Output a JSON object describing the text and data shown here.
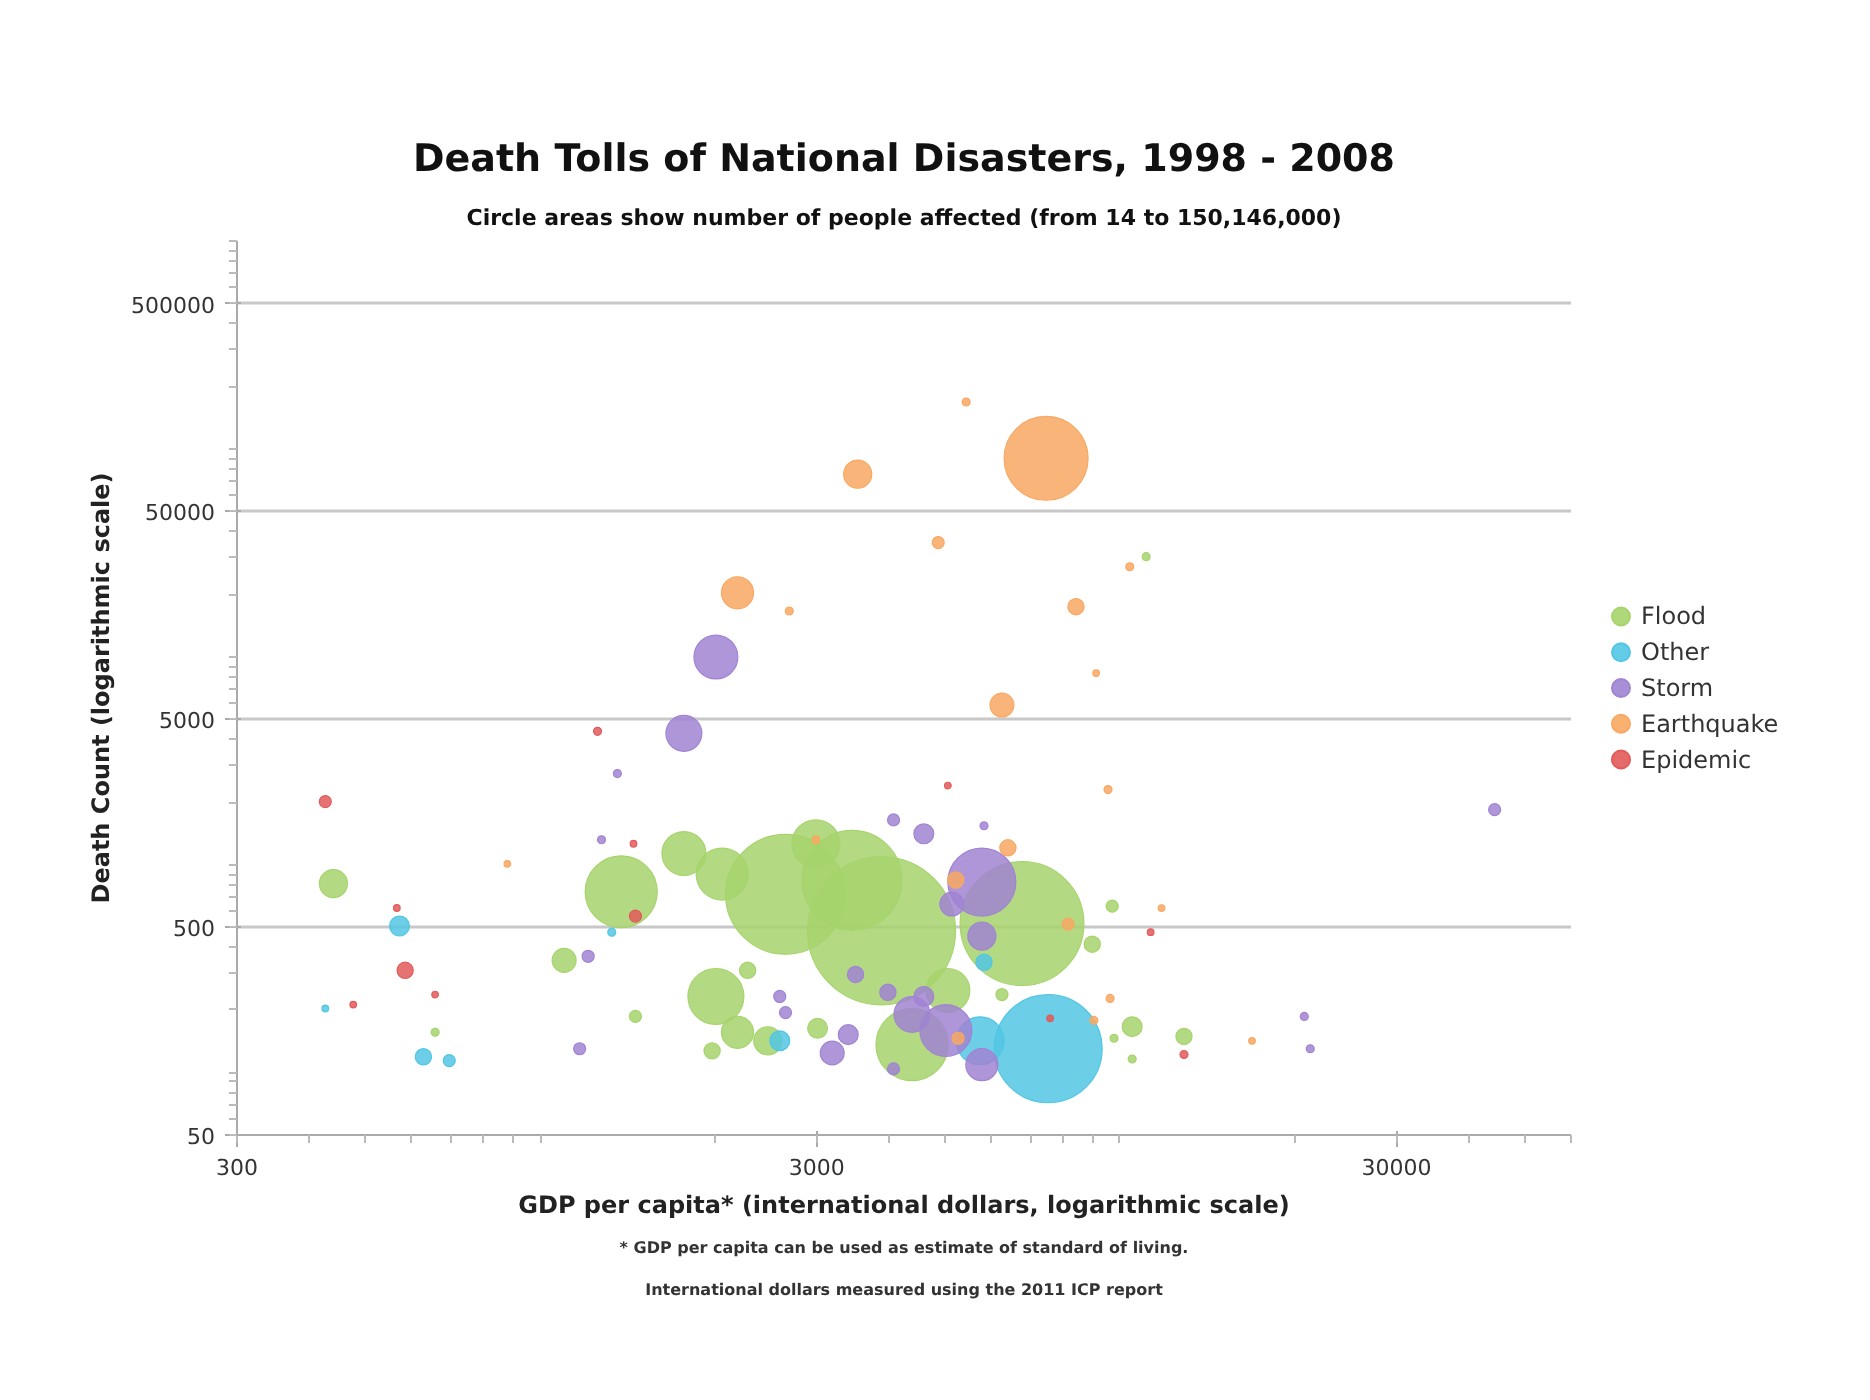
{
  "chart_data": {
    "type": "bubble",
    "title": "Death Tolls of National Disasters, 1998 - 2008",
    "subtitle": "Circle areas show number of people affected (from 14 to 150,146,000)",
    "xlabel": "GDP per capita* (international dollars, logarithmic scale)",
    "ylabel": "Death Count (logarithmic scale)",
    "annotations": [
      "* GDP per capita can be used as estimate of standard of living.",
      "International dollars measured using the 2011 ICP report"
    ],
    "xlim": [
      300,
      60000
    ],
    "ylim": [
      50,
      1000000
    ],
    "xticks": [
      300,
      3000,
      30000
    ],
    "yticks": [
      50,
      500,
      5000,
      50000,
      500000
    ],
    "log": "xy",
    "grid": "y",
    "legend": "right",
    "marker": "circle",
    "series": [
      {
        "name": "Flood",
        "color": "#a6d46c",
        "x": [
          440,
          1380,
          1770,
          2060,
          2650,
          2990,
          3450,
          3880,
          6780,
          2010,
          2190,
          2470,
          4380,
          5050,
          1100,
          1460,
          1980,
          2280,
          10500,
          12900,
          9700,
          8960,
          6260,
          11100,
          10500,
          9770,
          659,
          3010
        ],
        "values": [
          810,
          740,
          1130,
          900,
          720,
          1260,
          840,
          480,
          520,
          232,
          156,
          142,
          136,
          248,
          346,
          186,
          127,
          310,
          166,
          149,
          631,
          414,
          237,
          30300,
          116,
          146,
          156,
          163
        ],
        "sizes": [
          0.036,
          0.237,
          0.088,
          0.123,
          0.657,
          0.105,
          0.457,
          1,
          0.7,
          0.143,
          0.047,
          0.036,
          0.237,
          0.088,
          0.026,
          0.0066,
          0.012,
          0.012,
          0.018,
          0.012,
          0.0066,
          0.012,
          0.0066,
          0.0029,
          0.0029,
          0.0029,
          0.0029,
          0.018
        ]
      },
      {
        "name": "Other",
        "color": "#52c6e3",
        "x": [
          572,
          629,
          697,
          2590,
          7520,
          5830,
          5740,
          426,
          1329
        ],
        "values": [
          506,
          119,
          114,
          142,
          130,
          339,
          142,
          203,
          473
        ],
        "sizes": [
          0.018,
          0.012,
          0.0066,
          0.018,
          0.533,
          0.012,
          0.105,
          0.002,
          0.0029
        ]
      },
      {
        "name": "Storm",
        "color": "#a084d2",
        "x": [
          2010,
          1770,
          1359,
          1210,
          1170,
          4070,
          4590,
          5830,
          5780,
          5130,
          5780,
          4590,
          4380,
          5010,
          5780,
          4070,
          3400,
          3190,
          3500,
          3980,
          2590,
          2650,
          44300,
          20800,
          21300,
          1276
        ],
        "values": [
          9970,
          4280,
          2740,
          362,
          130,
          1640,
          1406,
          1538,
          824,
          646,
          453,
          232,
          190,
          159,
          109,
          104,
          152,
          124,
          296,
          243,
          232,
          194,
          1837,
          186,
          130,
          1316
        ],
        "sizes": [
          0.088,
          0.059,
          0.0029,
          0.0066,
          0.0066,
          0.0066,
          0.018,
          0.0029,
          0.211,
          0.026,
          0.036,
          0.018,
          0.059,
          0.123,
          0.047,
          0.0066,
          0.018,
          0.026,
          0.012,
          0.012,
          0.0066,
          0.0066,
          0.0066,
          0.0029,
          0.0029,
          0.0029
        ]
      },
      {
        "name": "Earthquake",
        "color": "#f8a862",
        "x": [
          3530,
          2190,
          2690,
          5430,
          7460,
          4860,
          10400,
          8400,
          9100,
          6260,
          9540,
          6410,
          5210,
          9620,
          11800,
          16900,
          8140,
          5260,
          878,
          2990,
          9020
        ],
        "values": [
          75500,
          20300,
          16600,
          168000,
          90100,
          35400,
          27100,
          17400,
          8340,
          5850,
          2295,
          1204,
          843,
          227,
          618,
          142,
          517,
          146,
          1008,
          1316,
          178
        ],
        "sizes": [
          0.036,
          0.047,
          0.0029,
          0.0029,
          0.322,
          0.0066,
          0.0029,
          0.012,
          0.002,
          0.026,
          0.0029,
          0.012,
          0.012,
          0.0029,
          0.002,
          0.002,
          0.0066,
          0.0066,
          0.002,
          0.0029,
          0.0029
        ]
      },
      {
        "name": "Epidemic",
        "color": "#e25b5b",
        "x": [
          426,
          585,
          1256,
          1460,
          476,
          5050,
          12900,
          566,
          659,
          1449,
          7580,
          11300
        ],
        "values": [
          2009,
          310,
          4375,
          565,
          212,
          2400,
          122,
          618,
          237,
          1259,
          182,
          473
        ],
        "sizes": [
          0.0066,
          0.012,
          0.0029,
          0.0066,
          0.002,
          0.002,
          0.0029,
          0.002,
          0.002,
          0.002,
          0.002,
          0.002
        ]
      }
    ]
  }
}
